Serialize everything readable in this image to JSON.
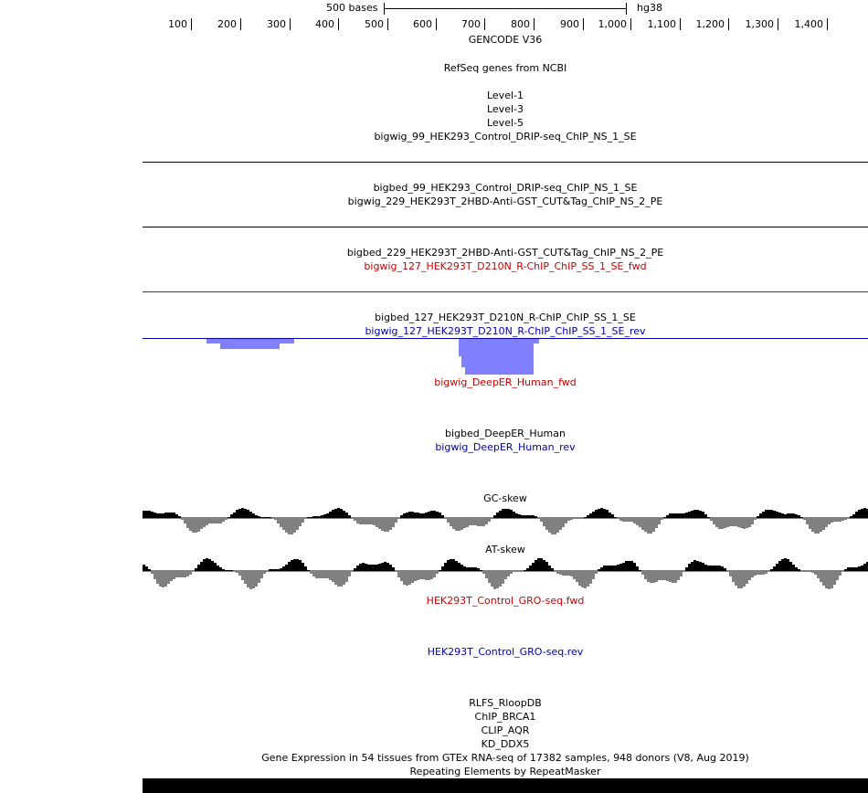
{
  "ruler": {
    "scale_label": "500 bases",
    "assembly": "hg38",
    "ticks": [
      "100",
      "200",
      "300",
      "400",
      "500",
      "600",
      "700",
      "800",
      "900",
      "1,000",
      "1,100",
      "1,200",
      "1,300",
      "1,400"
    ]
  },
  "tracks": [
    {
      "id": "gencode",
      "label": "GENCODE V36",
      "color": "#000000"
    },
    {
      "id": "refseq",
      "label": "RefSeq genes from NCBI",
      "color": "#000000"
    },
    {
      "id": "level1",
      "label": "Level-1",
      "color": "#000000"
    },
    {
      "id": "level3",
      "label": "Level-3",
      "color": "#000000"
    },
    {
      "id": "level5",
      "label": "Level-5",
      "color": "#000000"
    },
    {
      "id": "bw99",
      "label": "bigwig_99_HEK293_Control_DRIP-seq_ChIP_NS_1_SE",
      "color": "#000000"
    },
    {
      "id": "bb99",
      "label": "bigbed_99_HEK293_Control_DRIP-seq_ChIP_NS_1_SE",
      "color": "#000000"
    },
    {
      "id": "bw229",
      "label": "bigwig_229_HEK293T_2HBD-Anti-GST_CUT&Tag_ChIP_NS_2_PE",
      "color": "#000000"
    },
    {
      "id": "bb229",
      "label": "bigbed_229_HEK293T_2HBD-Anti-GST_CUT&Tag_ChIP_NS_2_PE",
      "color": "#000000"
    },
    {
      "id": "bw127f",
      "label": "bigwig_127_HEK293T_D210N_R-ChIP_ChIP_SS_1_SE_fwd",
      "color": "#cc0000"
    },
    {
      "id": "bb127",
      "label": "bigbed_127_HEK293T_D210N_R-ChIP_ChIP_SS_1_SE",
      "color": "#000000"
    },
    {
      "id": "bw127r",
      "label": "bigwig_127_HEK293T_D210N_R-ChIP_ChIP_SS_1_SE_rev",
      "color": "#0000aa"
    },
    {
      "id": "deepf",
      "label": "bigwig_DeepER_Human_fwd",
      "color": "#cc0000"
    },
    {
      "id": "deepbb",
      "label": "bigbed_DeepER_Human",
      "color": "#000000"
    },
    {
      "id": "deepr",
      "label": "bigwig_DeepER_Human_rev",
      "color": "#0000aa"
    },
    {
      "id": "gcskew",
      "label": "GC-skew",
      "color": "#000000"
    },
    {
      "id": "atskew",
      "label": "AT-skew",
      "color": "#000000"
    },
    {
      "id": "grof",
      "label": "HEK293T_Control_GRO-seq.fwd",
      "color": "#cc0000"
    },
    {
      "id": "gror",
      "label": "HEK293T_Control_GRO-seq.rev",
      "color": "#0000aa"
    },
    {
      "id": "rlfs",
      "label": "RLFS_RloopDB",
      "color": "#000000"
    },
    {
      "id": "brca1",
      "label": "ChIP_BRCA1",
      "color": "#000000"
    },
    {
      "id": "aqr",
      "label": "CLIP_AQR",
      "color": "#000000"
    },
    {
      "id": "ddx5",
      "label": "KD_DDX5",
      "color": "#000000"
    },
    {
      "id": "gtex",
      "label": "Gene Expression in 54 tissues from GTEx RNA-seq of 17382 samples, 948 donors (V8, Aug 2019)",
      "color": "#000000"
    },
    {
      "id": "rmsk",
      "label": "Repeating Elements by RepeatMasker",
      "color": "#000000"
    }
  ],
  "colors": {
    "black_line": "#000000",
    "red_line": "#cc0000",
    "blue_line": "#0000aa",
    "signal_blue": "#8080ff",
    "skew_pos": "#000000",
    "skew_neg": "#808080"
  }
}
